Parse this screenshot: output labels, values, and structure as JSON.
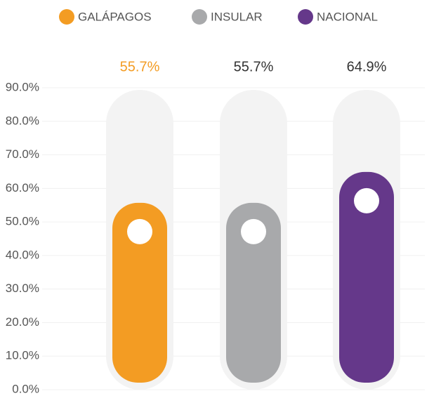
{
  "chart_data": {
    "type": "bar",
    "series": [
      {
        "name": "GALÁPAGOS",
        "color": "#f39c23",
        "values": [
          55.7
        ],
        "value_labels": [
          "55.7%"
        ],
        "label_color": "#f39c23"
      },
      {
        "name": "INSULAR",
        "color": "#a8a9ab",
        "values": [
          55.7
        ],
        "value_labels": [
          "55.7%"
        ],
        "label_color": "#333333"
      },
      {
        "name": "NACIONAL",
        "color": "#65388a",
        "values": [
          64.9
        ],
        "value_labels": [
          "64.9%"
        ],
        "label_color": "#333333"
      }
    ],
    "ylim": [
      0,
      90
    ],
    "yticks": [
      {
        "value": 0,
        "label": "0.0%"
      },
      {
        "value": 10,
        "label": "10.0%"
      },
      {
        "value": 20,
        "label": "20.0%"
      },
      {
        "value": 30,
        "label": "30.0%"
      },
      {
        "value": 40,
        "label": "40.0%"
      },
      {
        "value": 50,
        "label": "50.0%"
      },
      {
        "value": 60,
        "label": "60.0%"
      },
      {
        "value": 70,
        "label": "70.0%"
      },
      {
        "value": 80,
        "label": "80.0%"
      },
      {
        "value": 90,
        "label": "90.0%"
      }
    ],
    "grid": true,
    "legend": "top"
  }
}
